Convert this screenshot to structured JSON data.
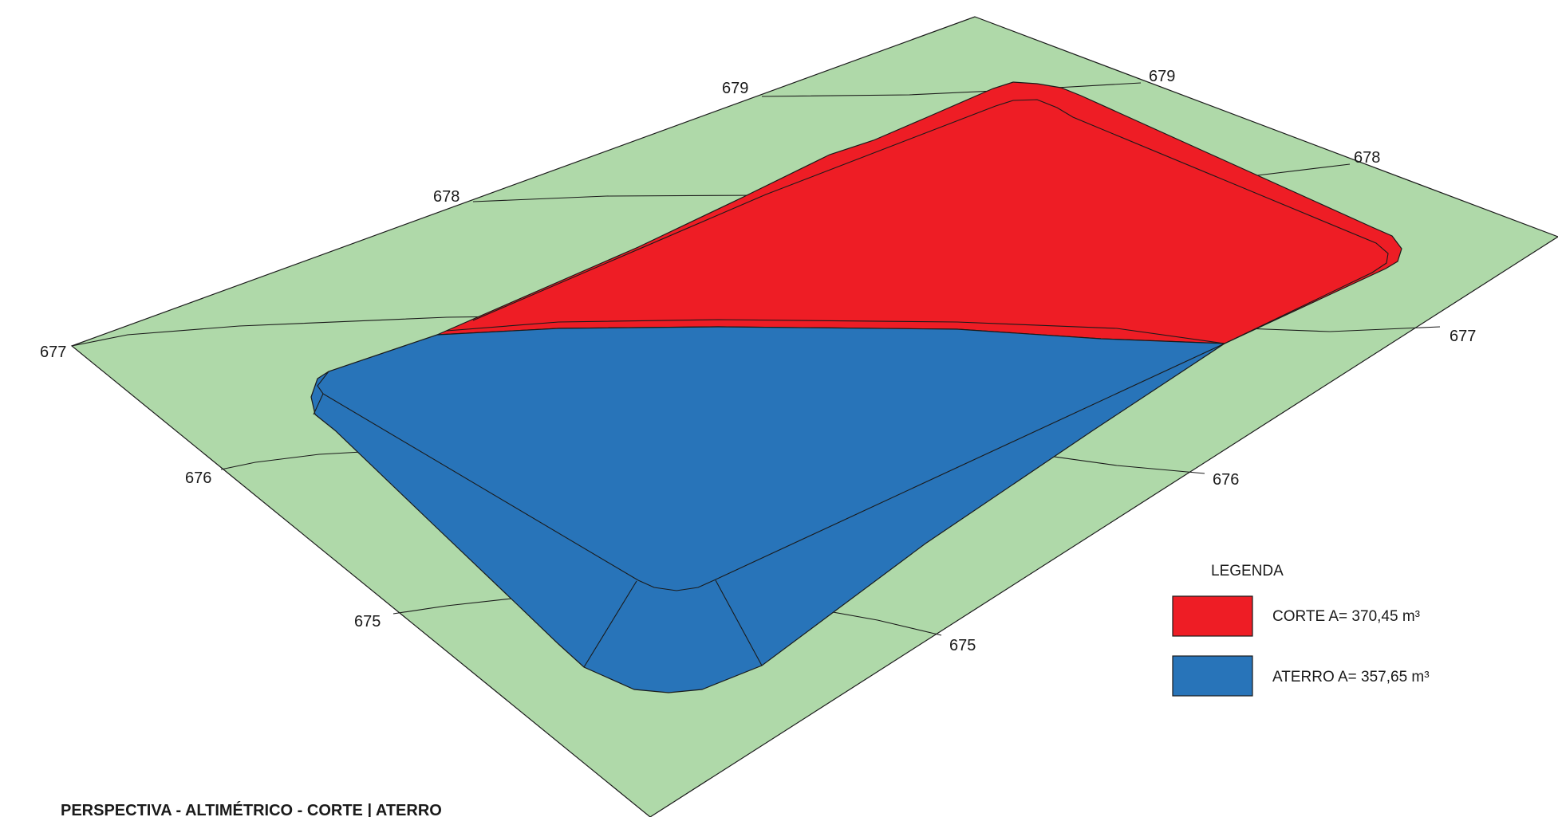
{
  "title": "PERSPECTIVA - ALTIMÉTRICO - CORTE | ATERRO",
  "contour_labels": {
    "c679_left": "679",
    "c679_right": "679",
    "c678_left": "678",
    "c678_right": "678",
    "c677_left": "677",
    "c677_right": "677",
    "c676_left": "676",
    "c676_right": "676",
    "c675_left": "675",
    "c675_right": "675"
  },
  "legend": {
    "heading": "LEGENDA",
    "items": [
      {
        "label": "CORTE A= 370,45 m³",
        "color": "#ee1d25"
      },
      {
        "label": "ATERRO A= 357,65 m³",
        "color": "#2874b9"
      }
    ]
  },
  "colors": {
    "terrain": "#afd9a9",
    "cut": "#ee1d25",
    "fill": "#2874b9",
    "line": "#1a1a1a"
  }
}
